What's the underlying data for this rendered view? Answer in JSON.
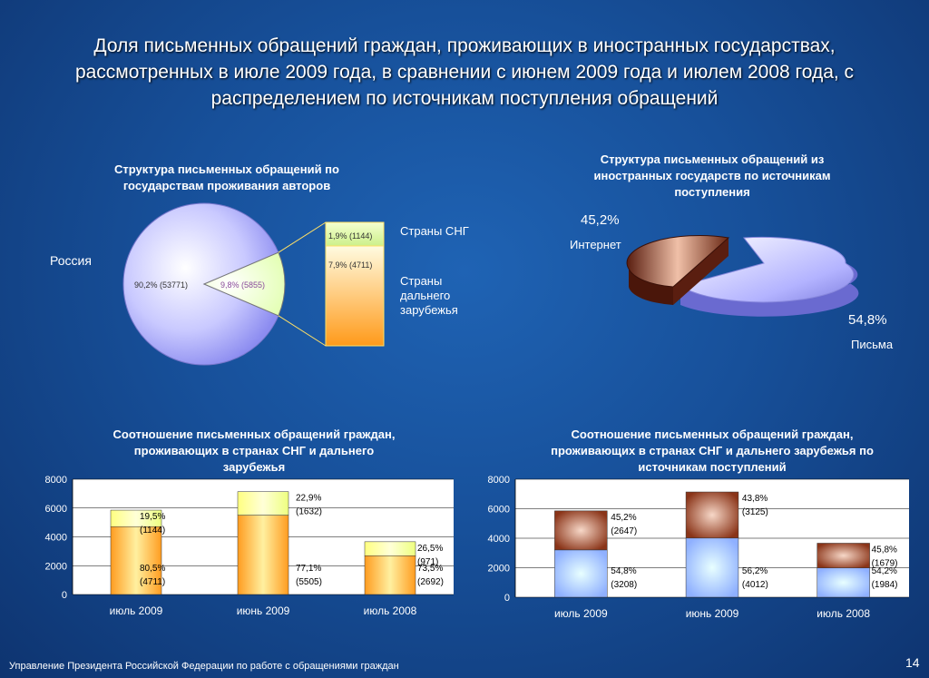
{
  "slide": {
    "title": "Доля письменных обращений граждан, проживающих в иностранных государствах, рассмотренных в июле 2009 года, в сравнении с июнем 2009 года и июлем 2008 года, с распределением по источникам поступления обращений",
    "footer": "Управление Президента Российской Федерации по работе с обращениями граждан",
    "page_number": "14"
  },
  "pie_countries": {
    "title": "Структура письменных обращений по государствам проживания авторов",
    "russia_label": "Россия",
    "russia_value": "90,2% (53771)",
    "foreign_value": "9,8% (5855)",
    "cis_value": "1,9% (1144)",
    "far_value": "7,9% (4711)",
    "cis_label": "Страны СНГ",
    "far_label": "Страны дальнего зарубежья",
    "colors": {
      "russia": "#c9c9ff",
      "foreign": "#eaffc0",
      "cis": "#dcf5a8",
      "far": "#ffb040"
    }
  },
  "pie_sources": {
    "title": "Структура письменных обращений из иностранных государств по источникам поступления",
    "internet_pct": "45,2%",
    "internet_label": "Интернет",
    "letters_pct": "54,8%",
    "letters_label": "Письма",
    "colors": {
      "internet": "#8a3a22",
      "letters": "#a9a9ff"
    }
  },
  "chart_data": [
    {
      "type": "bar",
      "title": "Соотношение письменных обращений граждан, проживающих в странах СНГ и дальнего зарубежья",
      "categories": [
        "июль 2009",
        "июнь 2009",
        "июль 2008"
      ],
      "ylim": [
        0,
        8000
      ],
      "yticks": [
        "0",
        "2000",
        "4000",
        "6000",
        "8000"
      ],
      "stacked": true,
      "series": [
        {
          "values": [
            4711,
            5505,
            2692
          ],
          "labels": [
            "80,5%",
            "77,1%",
            "73,5%"
          ],
          "counts": [
            "(4711)",
            "(5505)",
            "(2692)"
          ],
          "color": "#ffb347"
        },
        {
          "values": [
            1144,
            1632,
            971
          ],
          "labels": [
            "19,5%",
            "22,9%",
            "26,5%"
          ],
          "counts": [
            "(1144)",
            "(1632)",
            "(971)"
          ],
          "color": "#eeff99"
        }
      ],
      "grid": true
    },
    {
      "type": "bar",
      "title": "Соотношение письменных обращений граждан, проживающих в странах СНГ и дальнего зарубежья по источникам поступлений",
      "categories": [
        "июль 2009",
        "июнь 2009",
        "июль 2008"
      ],
      "ylim": [
        0,
        8000
      ],
      "yticks": [
        "0",
        "2000",
        "4000",
        "6000",
        "8000"
      ],
      "stacked": true,
      "series": [
        {
          "values": [
            3208,
            4012,
            1984
          ],
          "labels": [
            "54,8%",
            "56,2%",
            "54,2%"
          ],
          "counts": [
            "(3208)",
            "(4012)",
            "(1984)"
          ],
          "color": "#a6c8ff"
        },
        {
          "values": [
            2647,
            3125,
            1679
          ],
          "labels": [
            "45,2%",
            "43,8%",
            "45,8%"
          ],
          "counts": [
            "(2647)",
            "(3125)",
            "(1679)"
          ],
          "color": "#9a4a2e"
        }
      ],
      "grid": true
    }
  ]
}
